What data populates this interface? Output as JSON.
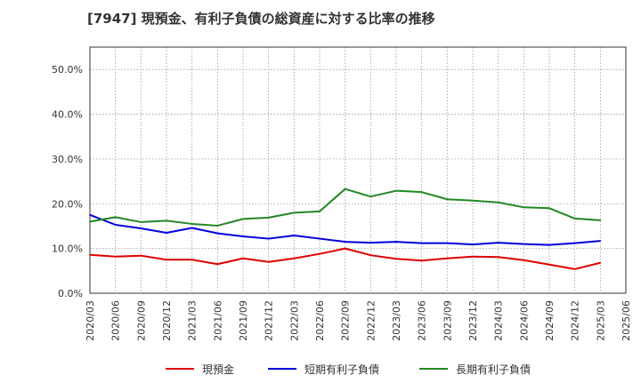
{
  "chart_data": {
    "type": "line",
    "title": "[7947]  現預金、有利子負債の総資産に対する比率の推移",
    "xlabel": "",
    "ylabel": "",
    "ylim": [
      0,
      55
    ],
    "yticks": [
      0,
      10,
      20,
      30,
      40,
      50
    ],
    "ytick_labels": [
      "0.0%",
      "10.0%",
      "20.0%",
      "30.0%",
      "40.0%",
      "50.0%"
    ],
    "categories": [
      "2020/03",
      "2020/06",
      "2020/09",
      "2020/12",
      "2021/03",
      "2021/06",
      "2021/09",
      "2021/12",
      "2022/03",
      "2022/06",
      "2022/09",
      "2022/12",
      "2023/03",
      "2023/06",
      "2023/09",
      "2023/12",
      "2024/03",
      "2024/06",
      "2024/09",
      "2024/12",
      "2025/03",
      "2025/06"
    ],
    "grid": true,
    "legend_position": "bottom",
    "series": [
      {
        "name": "現預金",
        "color": "#dd0000",
        "values": [
          8.6,
          8.2,
          8.4,
          7.5,
          7.5,
          6.5,
          7.8,
          7.0,
          7.8,
          8.8,
          10.0,
          8.5,
          7.7,
          7.3,
          7.8,
          8.2,
          8.1,
          7.4,
          6.4,
          5.4,
          6.8,
          null
        ]
      },
      {
        "name": "短期有利子負債",
        "color": "#0000dd",
        "values": [
          17.5,
          15.3,
          14.5,
          13.5,
          14.6,
          13.4,
          12.7,
          12.2,
          12.9,
          12.2,
          11.5,
          11.3,
          11.5,
          11.2,
          11.2,
          10.9,
          11.3,
          11.0,
          10.8,
          11.2,
          11.7,
          null
        ]
      },
      {
        "name": "長期有利子負債",
        "color": "#228822",
        "values": [
          16.0,
          17.0,
          15.9,
          16.2,
          15.5,
          15.1,
          16.6,
          16.9,
          18.0,
          18.3,
          23.3,
          21.6,
          22.9,
          22.6,
          21.0,
          20.7,
          20.3,
          19.2,
          19.0,
          16.7,
          16.3,
          null
        ]
      }
    ]
  }
}
